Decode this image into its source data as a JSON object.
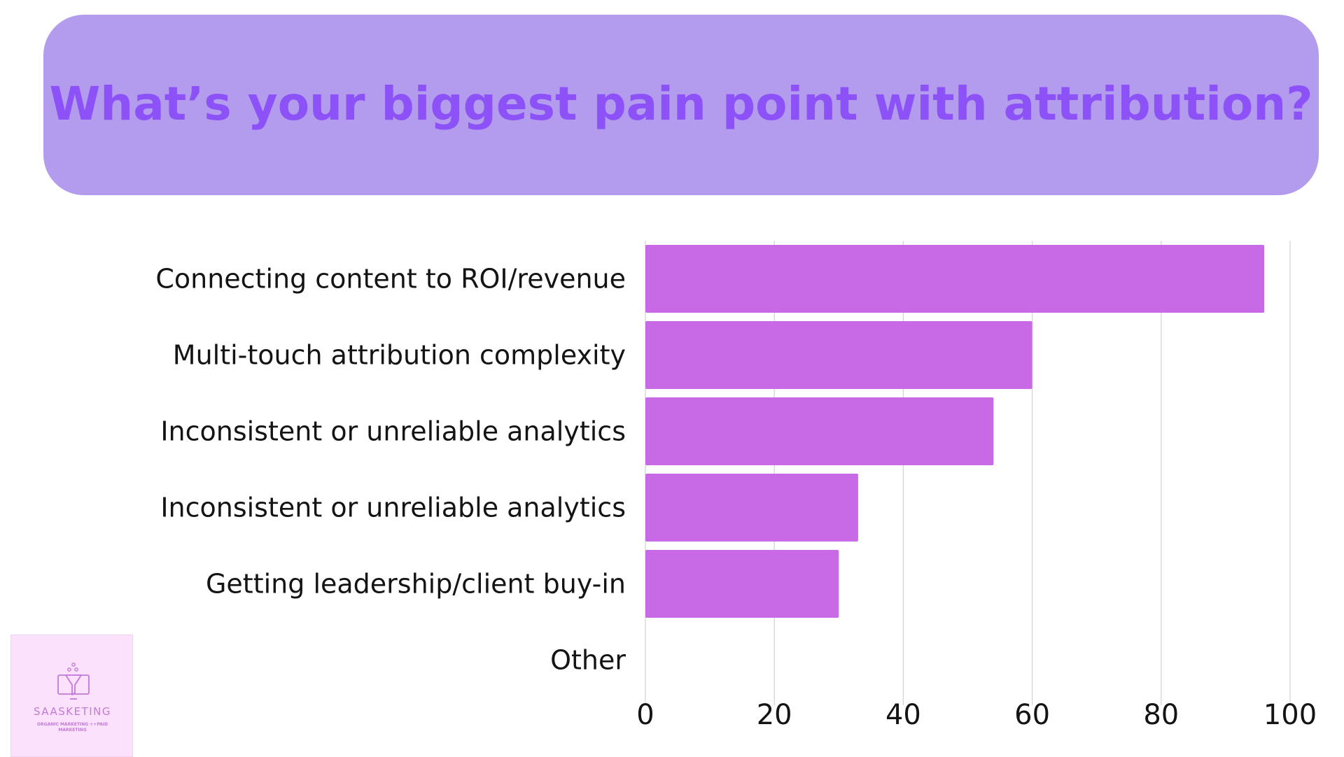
{
  "chart_data": {
    "type": "bar",
    "orientation": "horizontal",
    "title": "What’s your biggest pain point with attribution?",
    "categories": [
      "Connecting content to ROI/revenue",
      "Multi-touch attribution complexity",
      "Inconsistent or unreliable analytics",
      "Inconsistent or unreliable analytics ",
      "Getting leadership/client buy-in",
      "Other"
    ],
    "values": [
      96,
      60,
      54,
      33,
      30,
      0
    ],
    "xlim": [
      0,
      100
    ],
    "xticks": [
      0,
      20,
      40,
      60,
      80,
      100
    ],
    "xlabel": "",
    "ylabel": "",
    "grid": true,
    "bar_color": "#c86ae6",
    "grid_color": "#d5d5d5"
  },
  "theme": {
    "banner_color": "#b39cee",
    "title_color": "#8c52f7",
    "text_color": "#141414"
  },
  "logo": {
    "name": "SAASKETING",
    "tagline": "ORGANIC MARKETING ++PAID MARKETING",
    "icon": "funnel-monitor-icon",
    "color": "#c27ad8"
  }
}
